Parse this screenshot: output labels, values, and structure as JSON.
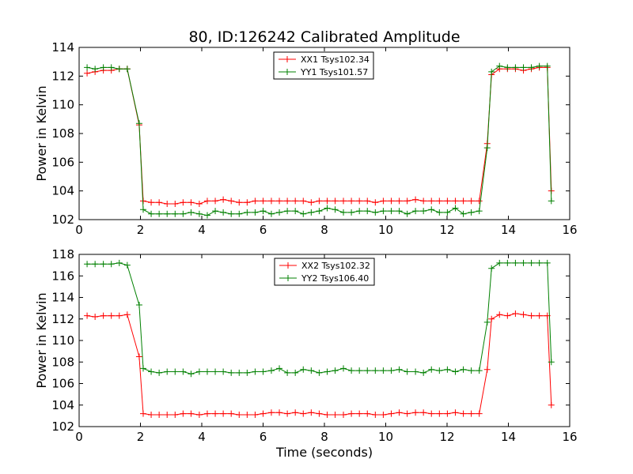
{
  "chart_data": [
    {
      "type": "line",
      "title": "80, ID:126242 Calibrated Amplitude",
      "xlabel": "",
      "ylabel": "Power in Kelvin",
      "xlim": [
        0,
        16
      ],
      "ylim": [
        102,
        114
      ],
      "xticks": [
        "0",
        "2",
        "4",
        "6",
        "8",
        "10",
        "12",
        "14",
        "16"
      ],
      "yticks": [
        "102",
        "104",
        "106",
        "108",
        "110",
        "112",
        "114"
      ],
      "grid": false,
      "legend_position": "top-center",
      "x": [
        0.26,
        0.52,
        0.79,
        1.05,
        1.31,
        1.57,
        1.96,
        2.09,
        2.35,
        2.61,
        2.87,
        3.13,
        3.39,
        3.65,
        3.92,
        4.18,
        4.44,
        4.7,
        4.96,
        5.22,
        5.48,
        5.74,
        6.0,
        6.27,
        6.53,
        6.79,
        7.05,
        7.31,
        7.57,
        7.83,
        8.09,
        8.35,
        8.62,
        8.88,
        9.14,
        9.4,
        9.66,
        9.92,
        10.18,
        10.44,
        10.7,
        10.97,
        11.23,
        11.49,
        11.75,
        12.01,
        12.27,
        12.53,
        12.79,
        13.05,
        13.31,
        13.45,
        13.71,
        13.97,
        14.23,
        14.49,
        14.75,
        15.01,
        15.27,
        15.4
      ],
      "series": [
        {
          "name": "XX1 Tsys102.34",
          "color": "#ff0000",
          "values": [
            112.2,
            112.3,
            112.4,
            112.4,
            112.5,
            112.5,
            108.6,
            103.3,
            103.2,
            103.2,
            103.1,
            103.1,
            103.2,
            103.2,
            103.1,
            103.3,
            103.3,
            103.4,
            103.3,
            103.2,
            103.2,
            103.3,
            103.3,
            103.3,
            103.3,
            103.3,
            103.3,
            103.3,
            103.2,
            103.3,
            103.3,
            103.3,
            103.3,
            103.3,
            103.3,
            103.3,
            103.2,
            103.3,
            103.3,
            103.3,
            103.3,
            103.4,
            103.3,
            103.3,
            103.3,
            103.3,
            103.3,
            103.3,
            103.3,
            103.3,
            107.3,
            112.1,
            112.5,
            112.5,
            112.5,
            112.4,
            112.5,
            112.6,
            112.6,
            104.0
          ]
        },
        {
          "name": "YY1 Tsys101.57",
          "color": "#008000",
          "values": [
            112.6,
            112.5,
            112.6,
            112.6,
            112.5,
            112.5,
            108.7,
            102.7,
            102.4,
            102.4,
            102.4,
            102.4,
            102.4,
            102.5,
            102.4,
            102.3,
            102.6,
            102.5,
            102.4,
            102.4,
            102.5,
            102.5,
            102.6,
            102.4,
            102.5,
            102.6,
            102.6,
            102.4,
            102.5,
            102.6,
            102.8,
            102.7,
            102.5,
            102.5,
            102.6,
            102.6,
            102.5,
            102.6,
            102.6,
            102.6,
            102.4,
            102.6,
            102.6,
            102.7,
            102.5,
            102.5,
            102.8,
            102.4,
            102.5,
            102.6,
            107.0,
            112.3,
            112.7,
            112.6,
            112.6,
            112.6,
            112.6,
            112.7,
            112.7,
            103.3
          ]
        }
      ]
    },
    {
      "type": "line",
      "title": "",
      "xlabel": "Time (seconds)",
      "ylabel": "Power in Kelvin",
      "xlim": [
        0,
        16
      ],
      "ylim": [
        102,
        118
      ],
      "xticks": [
        "0",
        "2",
        "4",
        "6",
        "8",
        "10",
        "12",
        "14",
        "16"
      ],
      "yticks": [
        "102",
        "104",
        "106",
        "108",
        "110",
        "112",
        "114",
        "116",
        "118"
      ],
      "grid": false,
      "legend_position": "top-center",
      "x": [
        0.26,
        0.52,
        0.79,
        1.05,
        1.31,
        1.57,
        1.96,
        2.09,
        2.35,
        2.61,
        2.87,
        3.13,
        3.39,
        3.65,
        3.92,
        4.18,
        4.44,
        4.7,
        4.96,
        5.22,
        5.48,
        5.74,
        6.0,
        6.27,
        6.53,
        6.79,
        7.05,
        7.31,
        7.57,
        7.83,
        8.09,
        8.35,
        8.62,
        8.88,
        9.14,
        9.4,
        9.66,
        9.92,
        10.18,
        10.44,
        10.7,
        10.97,
        11.23,
        11.49,
        11.75,
        12.01,
        12.27,
        12.53,
        12.79,
        13.05,
        13.31,
        13.45,
        13.71,
        13.97,
        14.23,
        14.49,
        14.75,
        15.01,
        15.27,
        15.4
      ],
      "series": [
        {
          "name": "XX2 Tsys102.32",
          "color": "#ff0000",
          "values": [
            112.3,
            112.2,
            112.3,
            112.3,
            112.3,
            112.4,
            108.5,
            103.2,
            103.1,
            103.1,
            103.1,
            103.1,
            103.2,
            103.2,
            103.1,
            103.2,
            103.2,
            103.2,
            103.2,
            103.1,
            103.1,
            103.1,
            103.2,
            103.3,
            103.3,
            103.2,
            103.3,
            103.2,
            103.3,
            103.2,
            103.1,
            103.1,
            103.1,
            103.2,
            103.2,
            103.2,
            103.1,
            103.1,
            103.2,
            103.3,
            103.2,
            103.3,
            103.3,
            103.2,
            103.2,
            103.2,
            103.3,
            103.2,
            103.2,
            103.2,
            107.3,
            112.0,
            112.4,
            112.3,
            112.5,
            112.4,
            112.3,
            112.3,
            112.3,
            104.0
          ]
        },
        {
          "name": "YY2 Tsys106.40",
          "color": "#008000",
          "values": [
            117.1,
            117.1,
            117.1,
            117.1,
            117.2,
            117.0,
            113.3,
            107.4,
            107.1,
            107.0,
            107.1,
            107.1,
            107.1,
            106.9,
            107.1,
            107.1,
            107.1,
            107.1,
            107.0,
            107.0,
            107.0,
            107.1,
            107.1,
            107.2,
            107.4,
            107.0,
            107.0,
            107.3,
            107.2,
            107.0,
            107.1,
            107.2,
            107.4,
            107.2,
            107.2,
            107.2,
            107.2,
            107.2,
            107.2,
            107.3,
            107.1,
            107.1,
            107.0,
            107.3,
            107.2,
            107.3,
            107.1,
            107.3,
            107.2,
            107.2,
            111.7,
            116.7,
            117.2,
            117.2,
            117.2,
            117.2,
            117.2,
            117.2,
            117.2,
            108.0
          ]
        }
      ]
    }
  ]
}
